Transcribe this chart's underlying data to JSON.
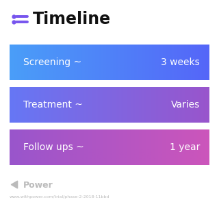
{
  "title": "Timeline",
  "title_fontsize": 17,
  "title_color": "#111111",
  "background_color": "#ffffff",
  "icon_color": "#7755ee",
  "rows": [
    {
      "label": "Screening ~",
      "value": "3 weeks",
      "gradient_left": "#4a9ef8",
      "gradient_right": "#5566f8"
    },
    {
      "label": "Treatment ~",
      "value": "Varies",
      "gradient_left": "#6677f5",
      "gradient_right": "#9955cc"
    },
    {
      "label": "Follow ups ~",
      "value": "1 year",
      "gradient_left": "#9955cc",
      "gradient_right": "#cc55bb"
    }
  ],
  "text_fontsize": 10,
  "text_color": "#ffffff",
  "watermark_text": "Power",
  "watermark_color": "#bbbbbb",
  "watermark_fontsize": 9,
  "url_text": "www.withpower.com/trial/phase-2-2018-11bbd",
  "url_color": "#bbbbbb",
  "url_fontsize": 4.5
}
